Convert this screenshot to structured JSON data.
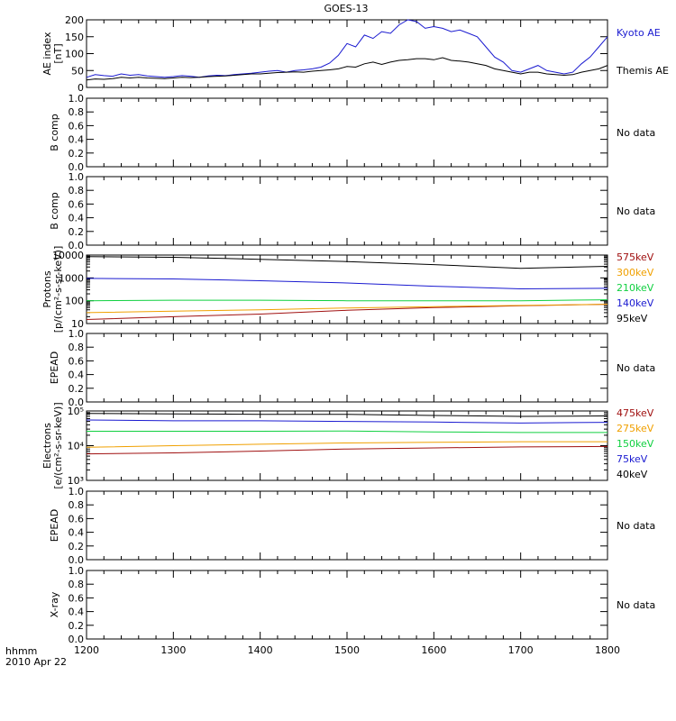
{
  "title": "GOES-13",
  "footer": {
    "line1": "hhmm",
    "line2": "2010 Apr 22"
  },
  "x_ticks": [
    "1200",
    "1300",
    "1400",
    "1500",
    "1600",
    "1700",
    "1800"
  ],
  "chart_data": [
    {
      "type": "line",
      "ylabel": [
        "AE index",
        "[nT]"
      ],
      "ylim": [
        0,
        200
      ],
      "yticks": [
        0,
        50,
        100,
        150,
        200
      ],
      "ytick_labels": [
        "0",
        "50",
        "100",
        "150",
        "200"
      ],
      "xlim": [
        1200,
        1800
      ],
      "legend": [
        "Kyoto AE",
        "Themis AE"
      ],
      "series": [
        {
          "name": "Kyoto AE",
          "color": "#1a1ad0",
          "x": [
            1200,
            1210,
            1220,
            1230,
            1240,
            1250,
            1260,
            1270,
            1280,
            1290,
            1300,
            1310,
            1320,
            1330,
            1340,
            1350,
            1360,
            1370,
            1380,
            1390,
            1400,
            1410,
            1420,
            1430,
            1440,
            1450,
            1460,
            1470,
            1480,
            1490,
            1500,
            1510,
            1520,
            1530,
            1540,
            1550,
            1560,
            1570,
            1580,
            1590,
            1600,
            1610,
            1620,
            1630,
            1640,
            1650,
            1660,
            1670,
            1680,
            1690,
            1700,
            1710,
            1720,
            1730,
            1740,
            1750,
            1760,
            1770,
            1780,
            1790,
            1800
          ],
          "y": [
            30,
            38,
            35,
            33,
            40,
            36,
            38,
            34,
            32,
            30,
            32,
            35,
            33,
            30,
            34,
            36,
            35,
            38,
            40,
            42,
            45,
            48,
            50,
            45,
            50,
            52,
            55,
            60,
            72,
            95,
            130,
            120,
            155,
            145,
            165,
            160,
            185,
            200,
            195,
            175,
            180,
            175,
            165,
            170,
            160,
            150,
            120,
            90,
            75,
            50,
            45,
            55,
            65,
            50,
            45,
            40,
            45,
            70,
            90,
            120,
            150
          ]
        },
        {
          "name": "Themis AE",
          "color": "#000000",
          "x": [
            1200,
            1210,
            1220,
            1230,
            1240,
            1250,
            1260,
            1270,
            1280,
            1290,
            1300,
            1310,
            1320,
            1330,
            1340,
            1350,
            1360,
            1370,
            1380,
            1390,
            1400,
            1410,
            1420,
            1430,
            1440,
            1450,
            1460,
            1470,
            1480,
            1490,
            1500,
            1510,
            1520,
            1530,
            1540,
            1550,
            1560,
            1570,
            1580,
            1590,
            1600,
            1610,
            1620,
            1630,
            1640,
            1650,
            1660,
            1670,
            1680,
            1690,
            1700,
            1710,
            1720,
            1730,
            1740,
            1750,
            1760,
            1770,
            1780,
            1790,
            1800
          ],
          "y": [
            22,
            25,
            24,
            26,
            30,
            28,
            30,
            28,
            27,
            26,
            28,
            30,
            29,
            30,
            32,
            33,
            34,
            36,
            38,
            40,
            40,
            42,
            44,
            45,
            46,
            45,
            48,
            50,
            52,
            55,
            62,
            60,
            70,
            75,
            68,
            75,
            80,
            82,
            85,
            85,
            82,
            88,
            80,
            78,
            75,
            70,
            65,
            55,
            50,
            45,
            40,
            45,
            45,
            40,
            38,
            36,
            38,
            45,
            50,
            55,
            65
          ]
        }
      ]
    },
    {
      "type": "line",
      "ylabel": [
        "B comp"
      ],
      "ylim": [
        0,
        1
      ],
      "yticks": [
        0,
        0.2,
        0.4,
        0.6,
        0.8,
        1
      ],
      "ytick_labels": [
        "0.0",
        "0.2",
        "0.4",
        "0.6",
        "0.8",
        "1.0"
      ],
      "legend": [
        "No data"
      ],
      "series": []
    },
    {
      "type": "line",
      "ylabel": [
        "B comp"
      ],
      "ylim": [
        0,
        1
      ],
      "yticks": [
        0,
        0.2,
        0.4,
        0.6,
        0.8,
        1
      ],
      "ytick_labels": [
        "0.0",
        "0.2",
        "0.4",
        "0.6",
        "0.8",
        "1.0"
      ],
      "legend": [
        "No data"
      ],
      "series": []
    },
    {
      "type": "line",
      "log": true,
      "ylabel": [
        "Protons",
        "[p/(cm²-s-sr-keV)]"
      ],
      "ylim": [
        10,
        10000
      ],
      "yticks": [
        10,
        100,
        1000,
        10000
      ],
      "ytick_labels": [
        "10",
        "100",
        "1000",
        "10000"
      ],
      "legend": [
        "575keV",
        "300keV",
        "210keV",
        "140keV",
        "95keV"
      ],
      "series": [
        {
          "name": "575keV",
          "color": "#a01010",
          "x": [
            1200,
            1300,
            1400,
            1500,
            1600,
            1700,
            1800
          ],
          "y": [
            15,
            20,
            26,
            38,
            50,
            60,
            70
          ]
        },
        {
          "name": "300keV",
          "color": "#f0a000",
          "x": [
            1200,
            1300,
            1400,
            1500,
            1600,
            1700,
            1800
          ],
          "y": [
            30,
            35,
            40,
            48,
            55,
            62,
            70
          ]
        },
        {
          "name": "210keV",
          "color": "#10d040",
          "x": [
            1200,
            1300,
            1400,
            1500,
            1600,
            1700,
            1800
          ],
          "y": [
            100,
            105,
            105,
            100,
            100,
            100,
            110
          ]
        },
        {
          "name": "140keV",
          "color": "#1a1ad0",
          "x": [
            1200,
            1300,
            1400,
            1500,
            1600,
            1700,
            1800
          ],
          "y": [
            950,
            900,
            750,
            600,
            430,
            330,
            350
          ]
        },
        {
          "name": "95keV",
          "color": "#000000",
          "x": [
            1200,
            1300,
            1400,
            1500,
            1600,
            1700,
            1800
          ],
          "y": [
            8500,
            8000,
            6500,
            5200,
            3800,
            2600,
            3200
          ]
        }
      ]
    },
    {
      "type": "line",
      "ylabel": [
        "EPEAD"
      ],
      "ylim": [
        0,
        1
      ],
      "yticks": [
        0,
        0.2,
        0.4,
        0.6,
        0.8,
        1
      ],
      "ytick_labels": [
        "0.0",
        "0.2",
        "0.4",
        "0.6",
        "0.8",
        "1.0"
      ],
      "legend": [
        "No data"
      ],
      "series": []
    },
    {
      "type": "line",
      "log": true,
      "ylabel": [
        "Electrons",
        "[e/(cm²-s-sr-keV)]"
      ],
      "ylim": [
        1000,
        100000
      ],
      "yticks": [
        1000,
        10000,
        100000
      ],
      "ytick_labels": [
        "10³",
        "10⁴",
        "10⁵"
      ],
      "legend": [
        "475keV",
        "275keV",
        "150keV",
        "75keV",
        "40keV"
      ],
      "series": [
        {
          "name": "475keV",
          "color": "#a01010",
          "x": [
            1200,
            1300,
            1400,
            1500,
            1600,
            1700,
            1800
          ],
          "y": [
            5800,
            6200,
            7000,
            8000,
            8600,
            9200,
            9500
          ]
        },
        {
          "name": "275keV",
          "color": "#f0a000",
          "x": [
            1200,
            1300,
            1400,
            1500,
            1600,
            1700,
            1800
          ],
          "y": [
            9000,
            10000,
            11000,
            12000,
            12500,
            13000,
            13000
          ]
        },
        {
          "name": "150keV",
          "color": "#10d040",
          "x": [
            1200,
            1300,
            1400,
            1500,
            1600,
            1700,
            1800
          ],
          "y": [
            26000,
            26000,
            26000,
            26500,
            25000,
            24000,
            24000
          ]
        },
        {
          "name": "75keV",
          "color": "#1a1ad0",
          "x": [
            1200,
            1300,
            1400,
            1500,
            1600,
            1700,
            1800
          ],
          "y": [
            55000,
            52000,
            52000,
            50000,
            48000,
            45000,
            47000
          ]
        },
        {
          "name": "40keV",
          "color": "#000000",
          "x": [
            1200,
            1300,
            1400,
            1500,
            1600,
            1700,
            1800
          ],
          "y": [
            85000,
            82000,
            80000,
            80000,
            74000,
            70000,
            72000
          ]
        }
      ]
    },
    {
      "type": "line",
      "ylabel": [
        "EPEAD"
      ],
      "ylim": [
        0,
        1
      ],
      "yticks": [
        0,
        0.2,
        0.4,
        0.6,
        0.8,
        1
      ],
      "ytick_labels": [
        "0.0",
        "0.2",
        "0.4",
        "0.6",
        "0.8",
        "1.0"
      ],
      "legend": [
        "No data"
      ],
      "series": []
    },
    {
      "type": "line",
      "ylabel": [
        "X-ray"
      ],
      "ylim": [
        0,
        1
      ],
      "yticks": [
        0,
        0.2,
        0.4,
        0.6,
        0.8,
        1
      ],
      "ytick_labels": [
        "0.0",
        "0.2",
        "0.4",
        "0.6",
        "0.8",
        "1.0"
      ],
      "legend": [
        "No data"
      ],
      "series": []
    }
  ]
}
